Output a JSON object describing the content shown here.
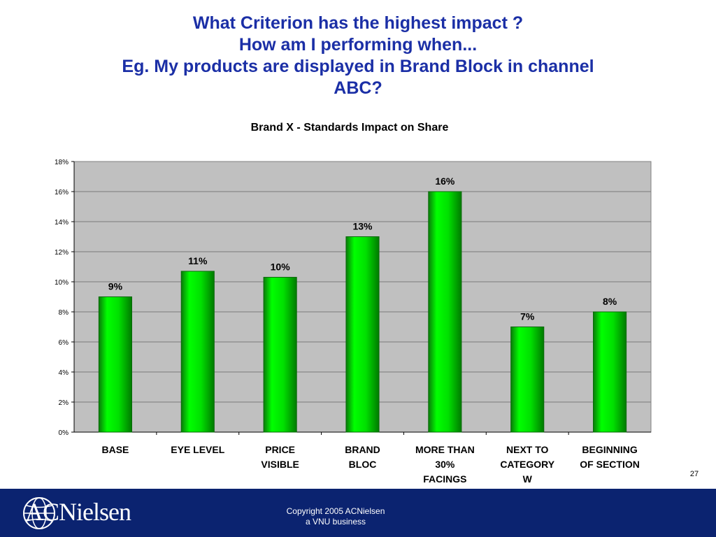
{
  "slide": {
    "title_lines": [
      "What Criterion has the highest impact ?",
      "How am I performing when...",
      "Eg. My products are displayed in Brand Block in channel",
      "ABC?"
    ],
    "page_number": "27"
  },
  "footer": {
    "logo_text": "ACNielsen",
    "copyright_line1": "Copyright 2005 ACNielsen",
    "copyright_line2": "a VNU business"
  },
  "colors": {
    "title": "#1b2fa6",
    "bar_fill": "#00dd00",
    "bar_edge": "#0a6a0a",
    "plot_bg": "#c0c0c0",
    "footer_bg": "#0b2370"
  },
  "chart_data": {
    "type": "bar",
    "title": "Brand X - Standards Impact on Share",
    "categories": [
      [
        "BASE"
      ],
      [
        "EYE LEVEL"
      ],
      [
        "PRICE",
        "VISIBLE"
      ],
      [
        "BRAND",
        "BLOC"
      ],
      [
        "MORE THAN",
        "30%",
        "FACINGS"
      ],
      [
        "NEXT TO",
        "CATEGORY",
        "W"
      ],
      [
        "BEGINNING",
        "OF SECTION"
      ]
    ],
    "values": [
      9.0,
      10.7,
      10.3,
      13.0,
      16.0,
      7.0,
      8.0
    ],
    "data_labels": [
      "9%",
      "11%",
      "10%",
      "13%",
      "16%",
      "7%",
      "8%"
    ],
    "yticks": [
      "0%",
      "2%",
      "4%",
      "6%",
      "8%",
      "10%",
      "12%",
      "14%",
      "16%",
      "18%"
    ],
    "ylim": [
      0,
      18
    ],
    "grid": true,
    "legend": "none",
    "xlabel": "",
    "ylabel": ""
  }
}
